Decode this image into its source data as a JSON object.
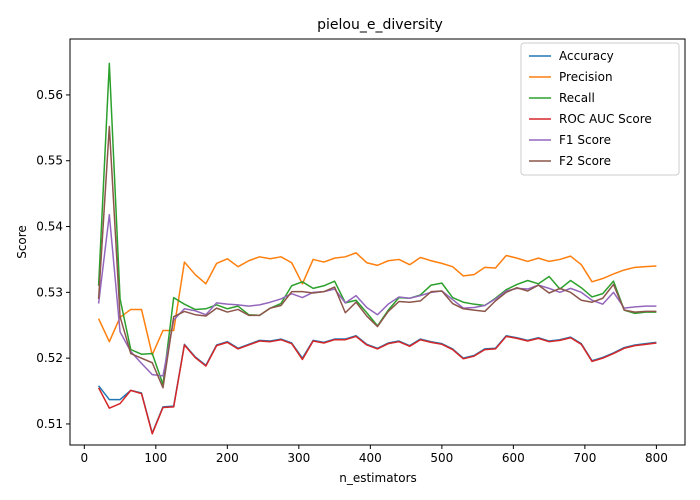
{
  "chart_data": {
    "type": "line",
    "title": "pielou_e_diversity",
    "xlabel": "n_estimators",
    "ylabel": "Score",
    "xlim": [
      -20,
      840
    ],
    "ylim": [
      0.5068,
      0.5685
    ],
    "xticks": [
      0,
      100,
      200,
      300,
      400,
      500,
      600,
      700,
      800
    ],
    "yticks": [
      0.51,
      0.52,
      0.53,
      0.54,
      0.55,
      0.56
    ],
    "grid": false,
    "legend_position": "top-right",
    "x": [
      20,
      35,
      50,
      65,
      80,
      95,
      110,
      125,
      140,
      155,
      170,
      185,
      200,
      215,
      230,
      245,
      260,
      275,
      290,
      305,
      320,
      335,
      350,
      365,
      380,
      395,
      410,
      425,
      440,
      455,
      470,
      485,
      500,
      515,
      530,
      545,
      560,
      575,
      590,
      605,
      620,
      635,
      650,
      665,
      680,
      695,
      710,
      725,
      740,
      755,
      770,
      785,
      800
    ],
    "series": [
      {
        "name": "Accuracy",
        "color": "#1f77b4",
        "values": [
          0.5158,
          0.5137,
          0.5137,
          0.5151,
          0.5147,
          0.5086,
          0.5126,
          0.5127,
          0.5221,
          0.5202,
          0.5189,
          0.522,
          0.5225,
          0.5215,
          0.5221,
          0.5227,
          0.5226,
          0.5229,
          0.5223,
          0.52,
          0.5227,
          0.5224,
          0.5229,
          0.5229,
          0.5234,
          0.5221,
          0.5215,
          0.5223,
          0.5226,
          0.5219,
          0.5229,
          0.5225,
          0.5222,
          0.5214,
          0.52,
          0.5204,
          0.5214,
          0.5215,
          0.5234,
          0.5231,
          0.5227,
          0.5231,
          0.5226,
          0.5228,
          0.5232,
          0.5222,
          0.5196,
          0.5201,
          0.5208,
          0.5216,
          0.522,
          0.5222,
          0.5224
        ]
      },
      {
        "name": "Precision",
        "color": "#ff7f0e",
        "values": [
          0.526,
          0.5225,
          0.5262,
          0.5274,
          0.5274,
          0.5205,
          0.5242,
          0.5242,
          0.5346,
          0.5327,
          0.5313,
          0.5344,
          0.5351,
          0.5339,
          0.5348,
          0.5354,
          0.5351,
          0.5354,
          0.5345,
          0.5313,
          0.535,
          0.5346,
          0.5352,
          0.5354,
          0.536,
          0.5345,
          0.5341,
          0.5348,
          0.535,
          0.5342,
          0.5353,
          0.5348,
          0.5344,
          0.5339,
          0.5325,
          0.5327,
          0.5338,
          0.5337,
          0.5356,
          0.5352,
          0.5347,
          0.5352,
          0.5347,
          0.535,
          0.5355,
          0.5342,
          0.5316,
          0.5321,
          0.5328,
          0.5334,
          0.5338,
          0.5339,
          0.534
        ]
      },
      {
        "name": "Recall",
        "color": "#2ca02c",
        "values": [
          0.531,
          0.5648,
          0.529,
          0.5213,
          0.5206,
          0.5207,
          0.516,
          0.5292,
          0.5282,
          0.5274,
          0.5275,
          0.5281,
          0.5275,
          0.5279,
          0.5266,
          0.5265,
          0.5276,
          0.5283,
          0.531,
          0.5316,
          0.5306,
          0.531,
          0.5317,
          0.5284,
          0.5288,
          0.5269,
          0.5249,
          0.5273,
          0.5292,
          0.5291,
          0.5296,
          0.5311,
          0.5314,
          0.5292,
          0.5285,
          0.5282,
          0.528,
          0.5291,
          0.5304,
          0.5312,
          0.5318,
          0.5313,
          0.5324,
          0.5305,
          0.5318,
          0.5307,
          0.5293,
          0.5298,
          0.5317,
          0.5273,
          0.5268,
          0.527,
          0.527
        ]
      },
      {
        "name": "ROC AUC Score",
        "color": "#d62728",
        "values": [
          0.5155,
          0.5124,
          0.5131,
          0.5151,
          0.5146,
          0.5085,
          0.5125,
          0.5126,
          0.522,
          0.5201,
          0.5188,
          0.5219,
          0.5224,
          0.5214,
          0.522,
          0.5226,
          0.5225,
          0.5228,
          0.5222,
          0.5198,
          0.5226,
          0.5223,
          0.5228,
          0.5228,
          0.5233,
          0.522,
          0.5214,
          0.5222,
          0.5225,
          0.5218,
          0.5228,
          0.5224,
          0.5221,
          0.5213,
          0.5199,
          0.5203,
          0.5213,
          0.5214,
          0.5233,
          0.523,
          0.5226,
          0.523,
          0.5225,
          0.5227,
          0.5231,
          0.5221,
          0.5195,
          0.52,
          0.5207,
          0.5215,
          0.5219,
          0.5221,
          0.5223
        ]
      },
      {
        "name": "F1 Score",
        "color": "#9467bd",
        "values": [
          0.5283,
          0.5418,
          0.524,
          0.521,
          0.5192,
          0.5175,
          0.5173,
          0.5258,
          0.5275,
          0.5272,
          0.5266,
          0.5284,
          0.5282,
          0.5281,
          0.5279,
          0.5281,
          0.5285,
          0.529,
          0.5298,
          0.5292,
          0.53,
          0.5301,
          0.5305,
          0.5284,
          0.5295,
          0.5277,
          0.5266,
          0.5282,
          0.5293,
          0.5291,
          0.5295,
          0.53,
          0.5302,
          0.5289,
          0.5276,
          0.5277,
          0.528,
          0.529,
          0.5302,
          0.5306,
          0.5305,
          0.5311,
          0.5306,
          0.53,
          0.5306,
          0.53,
          0.5288,
          0.5282,
          0.53,
          0.5276,
          0.5278,
          0.5279,
          0.5279
        ]
      },
      {
        "name": "F2 Score",
        "color": "#8c564b",
        "values": [
          0.529,
          0.5552,
          0.5263,
          0.5207,
          0.52,
          0.5193,
          0.5155,
          0.5263,
          0.5271,
          0.5266,
          0.5264,
          0.5276,
          0.527,
          0.5274,
          0.5265,
          0.5265,
          0.5276,
          0.528,
          0.5301,
          0.5301,
          0.5299,
          0.5301,
          0.5308,
          0.5269,
          0.5285,
          0.5264,
          0.5248,
          0.5271,
          0.5286,
          0.5285,
          0.5287,
          0.5301,
          0.5302,
          0.5283,
          0.5275,
          0.5273,
          0.5271,
          0.5287,
          0.53,
          0.5307,
          0.5302,
          0.5311,
          0.5299,
          0.5306,
          0.53,
          0.5288,
          0.5285,
          0.5291,
          0.5312,
          0.5273,
          0.527,
          0.5271,
          0.5271
        ]
      }
    ]
  }
}
